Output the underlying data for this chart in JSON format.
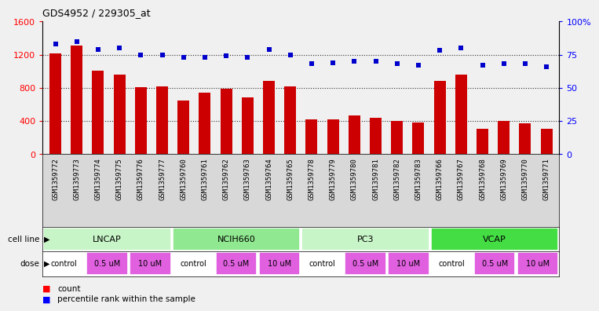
{
  "title": "GDS4952 / 229305_at",
  "samples": [
    "GSM1359772",
    "GSM1359773",
    "GSM1359774",
    "GSM1359775",
    "GSM1359776",
    "GSM1359777",
    "GSM1359760",
    "GSM1359761",
    "GSM1359762",
    "GSM1359763",
    "GSM1359764",
    "GSM1359765",
    "GSM1359778",
    "GSM1359779",
    "GSM1359780",
    "GSM1359781",
    "GSM1359782",
    "GSM1359783",
    "GSM1359766",
    "GSM1359767",
    "GSM1359768",
    "GSM1359769",
    "GSM1359770",
    "GSM1359771"
  ],
  "counts": [
    1210,
    1310,
    1010,
    960,
    810,
    820,
    650,
    740,
    790,
    680,
    880,
    820,
    420,
    420,
    470,
    440,
    400,
    380,
    880,
    960,
    310,
    400,
    370,
    310
  ],
  "percentile_ranks": [
    83,
    85,
    79,
    80,
    75,
    75,
    73,
    73,
    74,
    73,
    79,
    75,
    68,
    69,
    70,
    70,
    68,
    67,
    78,
    80,
    67,
    68,
    68,
    66
  ],
  "cell_lines": [
    {
      "label": "LNCAP",
      "start": 0,
      "end": 6,
      "color": "#c8f5c8"
    },
    {
      "label": "NCIH660",
      "start": 6,
      "end": 12,
      "color": "#90e890"
    },
    {
      "label": "PC3",
      "start": 12,
      "end": 18,
      "color": "#c8f5c8"
    },
    {
      "label": "VCAP",
      "start": 18,
      "end": 24,
      "color": "#44dd44"
    }
  ],
  "doses": [
    {
      "label": "control",
      "start": 0,
      "end": 2,
      "color": "#ffffff"
    },
    {
      "label": "0.5 uM",
      "start": 2,
      "end": 4,
      "color": "#e060e0"
    },
    {
      "label": "10 uM",
      "start": 4,
      "end": 6,
      "color": "#e060e0"
    },
    {
      "label": "control",
      "start": 6,
      "end": 8,
      "color": "#ffffff"
    },
    {
      "label": "0.5 uM",
      "start": 8,
      "end": 10,
      "color": "#e060e0"
    },
    {
      "label": "10 uM",
      "start": 10,
      "end": 12,
      "color": "#e060e0"
    },
    {
      "label": "control",
      "start": 12,
      "end": 14,
      "color": "#ffffff"
    },
    {
      "label": "0.5 uM",
      "start": 14,
      "end": 16,
      "color": "#e060e0"
    },
    {
      "label": "10 uM",
      "start": 16,
      "end": 18,
      "color": "#e060e0"
    },
    {
      "label": "control",
      "start": 18,
      "end": 20,
      "color": "#ffffff"
    },
    {
      "label": "0.5 uM",
      "start": 20,
      "end": 22,
      "color": "#e060e0"
    },
    {
      "label": "10 uM",
      "start": 22,
      "end": 24,
      "color": "#e060e0"
    }
  ],
  "bar_color": "#cc0000",
  "dot_color": "#0000cc",
  "ylim_left": [
    0,
    1600
  ],
  "ylim_right": [
    0,
    100
  ],
  "yticks_left": [
    0,
    400,
    800,
    1200,
    1600
  ],
  "yticks_right": [
    0,
    25,
    50,
    75,
    100
  ],
  "ytick_right_labels": [
    "0",
    "25",
    "50",
    "75",
    "100%"
  ],
  "grid_values": [
    400,
    800,
    1200
  ],
  "xticklabel_bg": "#d8d8d8",
  "fig_bg": "#f0f0f0"
}
